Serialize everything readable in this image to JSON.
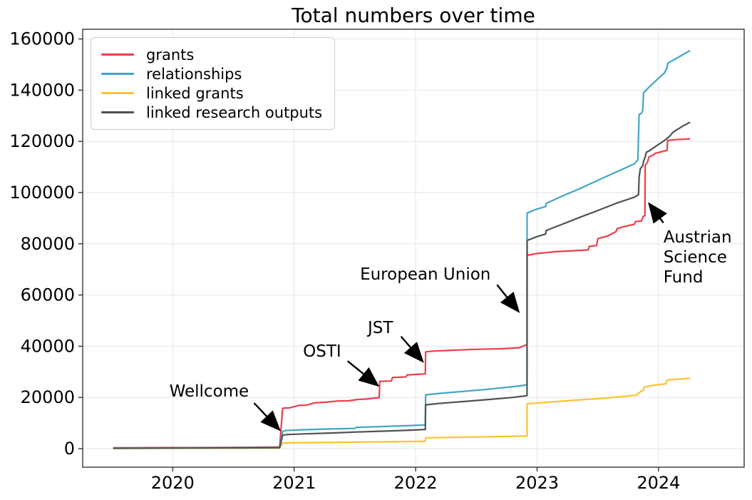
{
  "title": "Total numbers over time",
  "chart_data": {
    "type": "line",
    "title": "Total numbers over time",
    "grid": true,
    "legend_position": "upper-left",
    "x_axis": {
      "ticks": [
        2020,
        2021,
        2022,
        2023,
        2024
      ],
      "range": [
        2019.26,
        2024.7
      ]
    },
    "y_axis": {
      "ticks": [
        0,
        20000,
        40000,
        60000,
        80000,
        100000,
        120000,
        140000,
        160000
      ],
      "range": [
        -7200,
        163800
      ]
    },
    "axis_color": "#262626",
    "grid_color": "#e6e6e6",
    "series": [
      {
        "name": "grants",
        "color": "#ed3e49",
        "points": [
          [
            2019.51,
            300
          ],
          [
            2020.6,
            500
          ],
          [
            2020.88,
            600
          ],
          [
            2020.905,
            15800
          ],
          [
            2020.97,
            16000
          ],
          [
            2021.04,
            16900
          ],
          [
            2021.1,
            17000
          ],
          [
            2021.17,
            17900
          ],
          [
            2021.25,
            18100
          ],
          [
            2021.32,
            18400
          ],
          [
            2021.36,
            18600
          ],
          [
            2021.45,
            18700
          ],
          [
            2021.52,
            19200
          ],
          [
            2021.6,
            19400
          ],
          [
            2021.67,
            19800
          ],
          [
            2021.7,
            19900
          ],
          [
            2021.705,
            26300
          ],
          [
            2021.8,
            26400
          ],
          [
            2021.81,
            27800
          ],
          [
            2021.92,
            28000
          ],
          [
            2021.93,
            28800
          ],
          [
            2022.05,
            29100
          ],
          [
            2022.08,
            29200
          ],
          [
            2022.082,
            37800
          ],
          [
            2022.15,
            38100
          ],
          [
            2022.3,
            38400
          ],
          [
            2022.5,
            38800
          ],
          [
            2022.7,
            39000
          ],
          [
            2022.85,
            39400
          ],
          [
            2022.9,
            40300
          ],
          [
            2022.917,
            40800
          ],
          [
            2022.918,
            75500
          ],
          [
            2023.0,
            76200
          ],
          [
            2023.15,
            76900
          ],
          [
            2023.3,
            77300
          ],
          [
            2023.42,
            77600
          ],
          [
            2023.43,
            79000
          ],
          [
            2023.49,
            79300
          ],
          [
            2023.5,
            82000
          ],
          [
            2023.58,
            83000
          ],
          [
            2023.65,
            84800
          ],
          [
            2023.66,
            86000
          ],
          [
            2023.75,
            87100
          ],
          [
            2023.8,
            87600
          ],
          [
            2023.81,
            88700
          ],
          [
            2023.86,
            88900
          ],
          [
            2023.875,
            90800
          ],
          [
            2023.888,
            91000
          ],
          [
            2023.89,
            110600
          ],
          [
            2023.91,
            112000
          ],
          [
            2023.92,
            113900
          ],
          [
            2023.96,
            114800
          ],
          [
            2023.97,
            115300
          ],
          [
            2024.07,
            116500
          ],
          [
            2024.075,
            120400
          ],
          [
            2024.15,
            120700
          ],
          [
            2024.26,
            121000
          ]
        ]
      },
      {
        "name": "relationships",
        "color": "#41a6c4",
        "points": [
          [
            2019.51,
            200
          ],
          [
            2020.88,
            400
          ],
          [
            2020.905,
            6700
          ],
          [
            2020.93,
            7100
          ],
          [
            2021.1,
            7400
          ],
          [
            2021.3,
            7700
          ],
          [
            2021.5,
            7900
          ],
          [
            2021.51,
            8300
          ],
          [
            2021.7,
            8600
          ],
          [
            2021.9,
            8900
          ],
          [
            2022.05,
            9200
          ],
          [
            2022.08,
            9300
          ],
          [
            2022.082,
            21000
          ],
          [
            2022.2,
            21600
          ],
          [
            2022.4,
            22400
          ],
          [
            2022.6,
            23200
          ],
          [
            2022.8,
            24200
          ],
          [
            2022.9,
            24800
          ],
          [
            2022.917,
            25000
          ],
          [
            2022.918,
            92000
          ],
          [
            2023.0,
            93600
          ],
          [
            2023.07,
            94500
          ],
          [
            2023.075,
            95800
          ],
          [
            2023.2,
            98500
          ],
          [
            2023.35,
            101500
          ],
          [
            2023.5,
            104800
          ],
          [
            2023.65,
            108000
          ],
          [
            2023.8,
            111200
          ],
          [
            2023.83,
            112800
          ],
          [
            2023.84,
            130500
          ],
          [
            2023.86,
            131000
          ],
          [
            2023.87,
            132000
          ],
          [
            2023.877,
            139000
          ],
          [
            2023.95,
            142500
          ],
          [
            2024.05,
            146800
          ],
          [
            2024.07,
            148800
          ],
          [
            2024.075,
            150500
          ],
          [
            2024.15,
            152500
          ],
          [
            2024.26,
            155500
          ]
        ]
      },
      {
        "name": "linked grants",
        "color": "#fdc32e",
        "points": [
          [
            2019.51,
            100
          ],
          [
            2020.88,
            250
          ],
          [
            2020.905,
            2200
          ],
          [
            2021.1,
            2350
          ],
          [
            2021.4,
            2500
          ],
          [
            2021.7,
            2650
          ],
          [
            2022.0,
            2800
          ],
          [
            2022.08,
            2850
          ],
          [
            2022.082,
            4200
          ],
          [
            2022.3,
            4400
          ],
          [
            2022.6,
            4650
          ],
          [
            2022.9,
            4900
          ],
          [
            2022.917,
            4950
          ],
          [
            2022.918,
            17500
          ],
          [
            2023.1,
            18200
          ],
          [
            2023.3,
            18900
          ],
          [
            2023.5,
            19500
          ],
          [
            2023.7,
            20300
          ],
          [
            2023.82,
            20900
          ],
          [
            2023.83,
            21500
          ],
          [
            2023.84,
            21800
          ],
          [
            2023.86,
            22500
          ],
          [
            2023.875,
            22800
          ],
          [
            2023.88,
            24000
          ],
          [
            2023.95,
            24700
          ],
          [
            2024.0,
            25000
          ],
          [
            2024.06,
            25300
          ],
          [
            2024.07,
            26800
          ],
          [
            2024.15,
            27100
          ],
          [
            2024.26,
            27500
          ]
        ]
      },
      {
        "name": "linked research outputs",
        "color": "#4c5356",
        "points": [
          [
            2019.51,
            150
          ],
          [
            2020.88,
            350
          ],
          [
            2020.905,
            5200
          ],
          [
            2020.93,
            5500
          ],
          [
            2021.1,
            5800
          ],
          [
            2021.3,
            6100
          ],
          [
            2021.51,
            6500
          ],
          [
            2021.7,
            6800
          ],
          [
            2021.9,
            7100
          ],
          [
            2022.05,
            7400
          ],
          [
            2022.08,
            7500
          ],
          [
            2022.082,
            17100
          ],
          [
            2022.2,
            17700
          ],
          [
            2022.4,
            18400
          ],
          [
            2022.6,
            19200
          ],
          [
            2022.8,
            20000
          ],
          [
            2022.917,
            20700
          ],
          [
            2022.918,
            81300
          ],
          [
            2023.0,
            82800
          ],
          [
            2023.07,
            83800
          ],
          [
            2023.075,
            85200
          ],
          [
            2023.2,
            87500
          ],
          [
            2023.35,
            90300
          ],
          [
            2023.5,
            93000
          ],
          [
            2023.65,
            95800
          ],
          [
            2023.8,
            98200
          ],
          [
            2023.835,
            99200
          ],
          [
            2023.84,
            106000
          ],
          [
            2023.85,
            109300
          ],
          [
            2023.87,
            110500
          ],
          [
            2023.875,
            112000
          ],
          [
            2023.89,
            114000
          ],
          [
            2023.9,
            115800
          ],
          [
            2023.92,
            116200
          ],
          [
            2024.0,
            118800
          ],
          [
            2024.05,
            120400
          ],
          [
            2024.08,
            121500
          ],
          [
            2024.1,
            122500
          ],
          [
            2024.12,
            123600
          ],
          [
            2024.2,
            126000
          ],
          [
            2024.26,
            127500
          ]
        ]
      }
    ],
    "annotations": [
      {
        "label": "Wellcome",
        "lines": [
          "Wellcome"
        ],
        "anchor": "middle",
        "text_xy": [
          2020.3,
          20300
        ],
        "arrow_from": [
          2020.67,
          17800
        ],
        "arrow_to": [
          2020.87,
          7800
        ]
      },
      {
        "label": "OSTI",
        "lines": [
          "OSTI"
        ],
        "anchor": "middle",
        "text_xy": [
          2021.23,
          35900
        ],
        "arrow_from": [
          2021.44,
          34200
        ],
        "arrow_to": [
          2021.68,
          25000
        ]
      },
      {
        "label": "JST",
        "lines": [
          "JST"
        ],
        "anchor": "middle",
        "text_xy": [
          2021.71,
          45100
        ],
        "arrow_from": [
          2021.88,
          43800
        ],
        "arrow_to": [
          2022.05,
          34500
        ]
      },
      {
        "label": "European Union",
        "lines": [
          "European Union"
        ],
        "anchor": "middle",
        "text_xy": [
          2022.08,
          66000
        ],
        "arrow_from": [
          2022.67,
          64000
        ],
        "arrow_to": [
          2022.84,
          54000
        ]
      },
      {
        "label": "Austrian Science Fund",
        "lines": [
          "Austrian",
          "Science",
          "Fund"
        ],
        "anchor": "start",
        "text_xy": [
          2024.04,
          80500
        ],
        "arrow_from": [
          2024.04,
          88200
        ],
        "arrow_to": [
          2023.93,
          95200
        ]
      }
    ]
  }
}
